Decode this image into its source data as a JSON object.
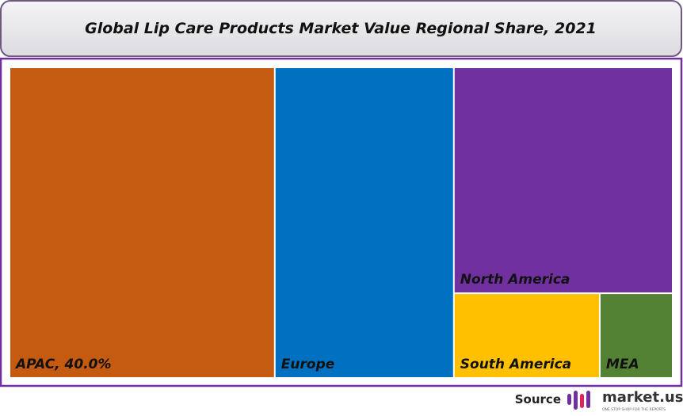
{
  "chart_data": {
    "type": "treemap",
    "title": "Global Lip Care Products Market Value Regional Share, 2021",
    "categories": [
      "APAC, 40.0%",
      "Europe",
      "North America",
      "South America",
      "MEA"
    ],
    "values": [
      40.0,
      27.0,
      24.0,
      6.0,
      3.0
    ],
    "colors": [
      "#c55a11",
      "#0070c0",
      "#7030a0",
      "#ffc000",
      "#548235"
    ]
  },
  "footer": {
    "source": "Source",
    "brand": "market.us",
    "tagline": "ONE STOP SHOP FOR THE REPORTS"
  }
}
